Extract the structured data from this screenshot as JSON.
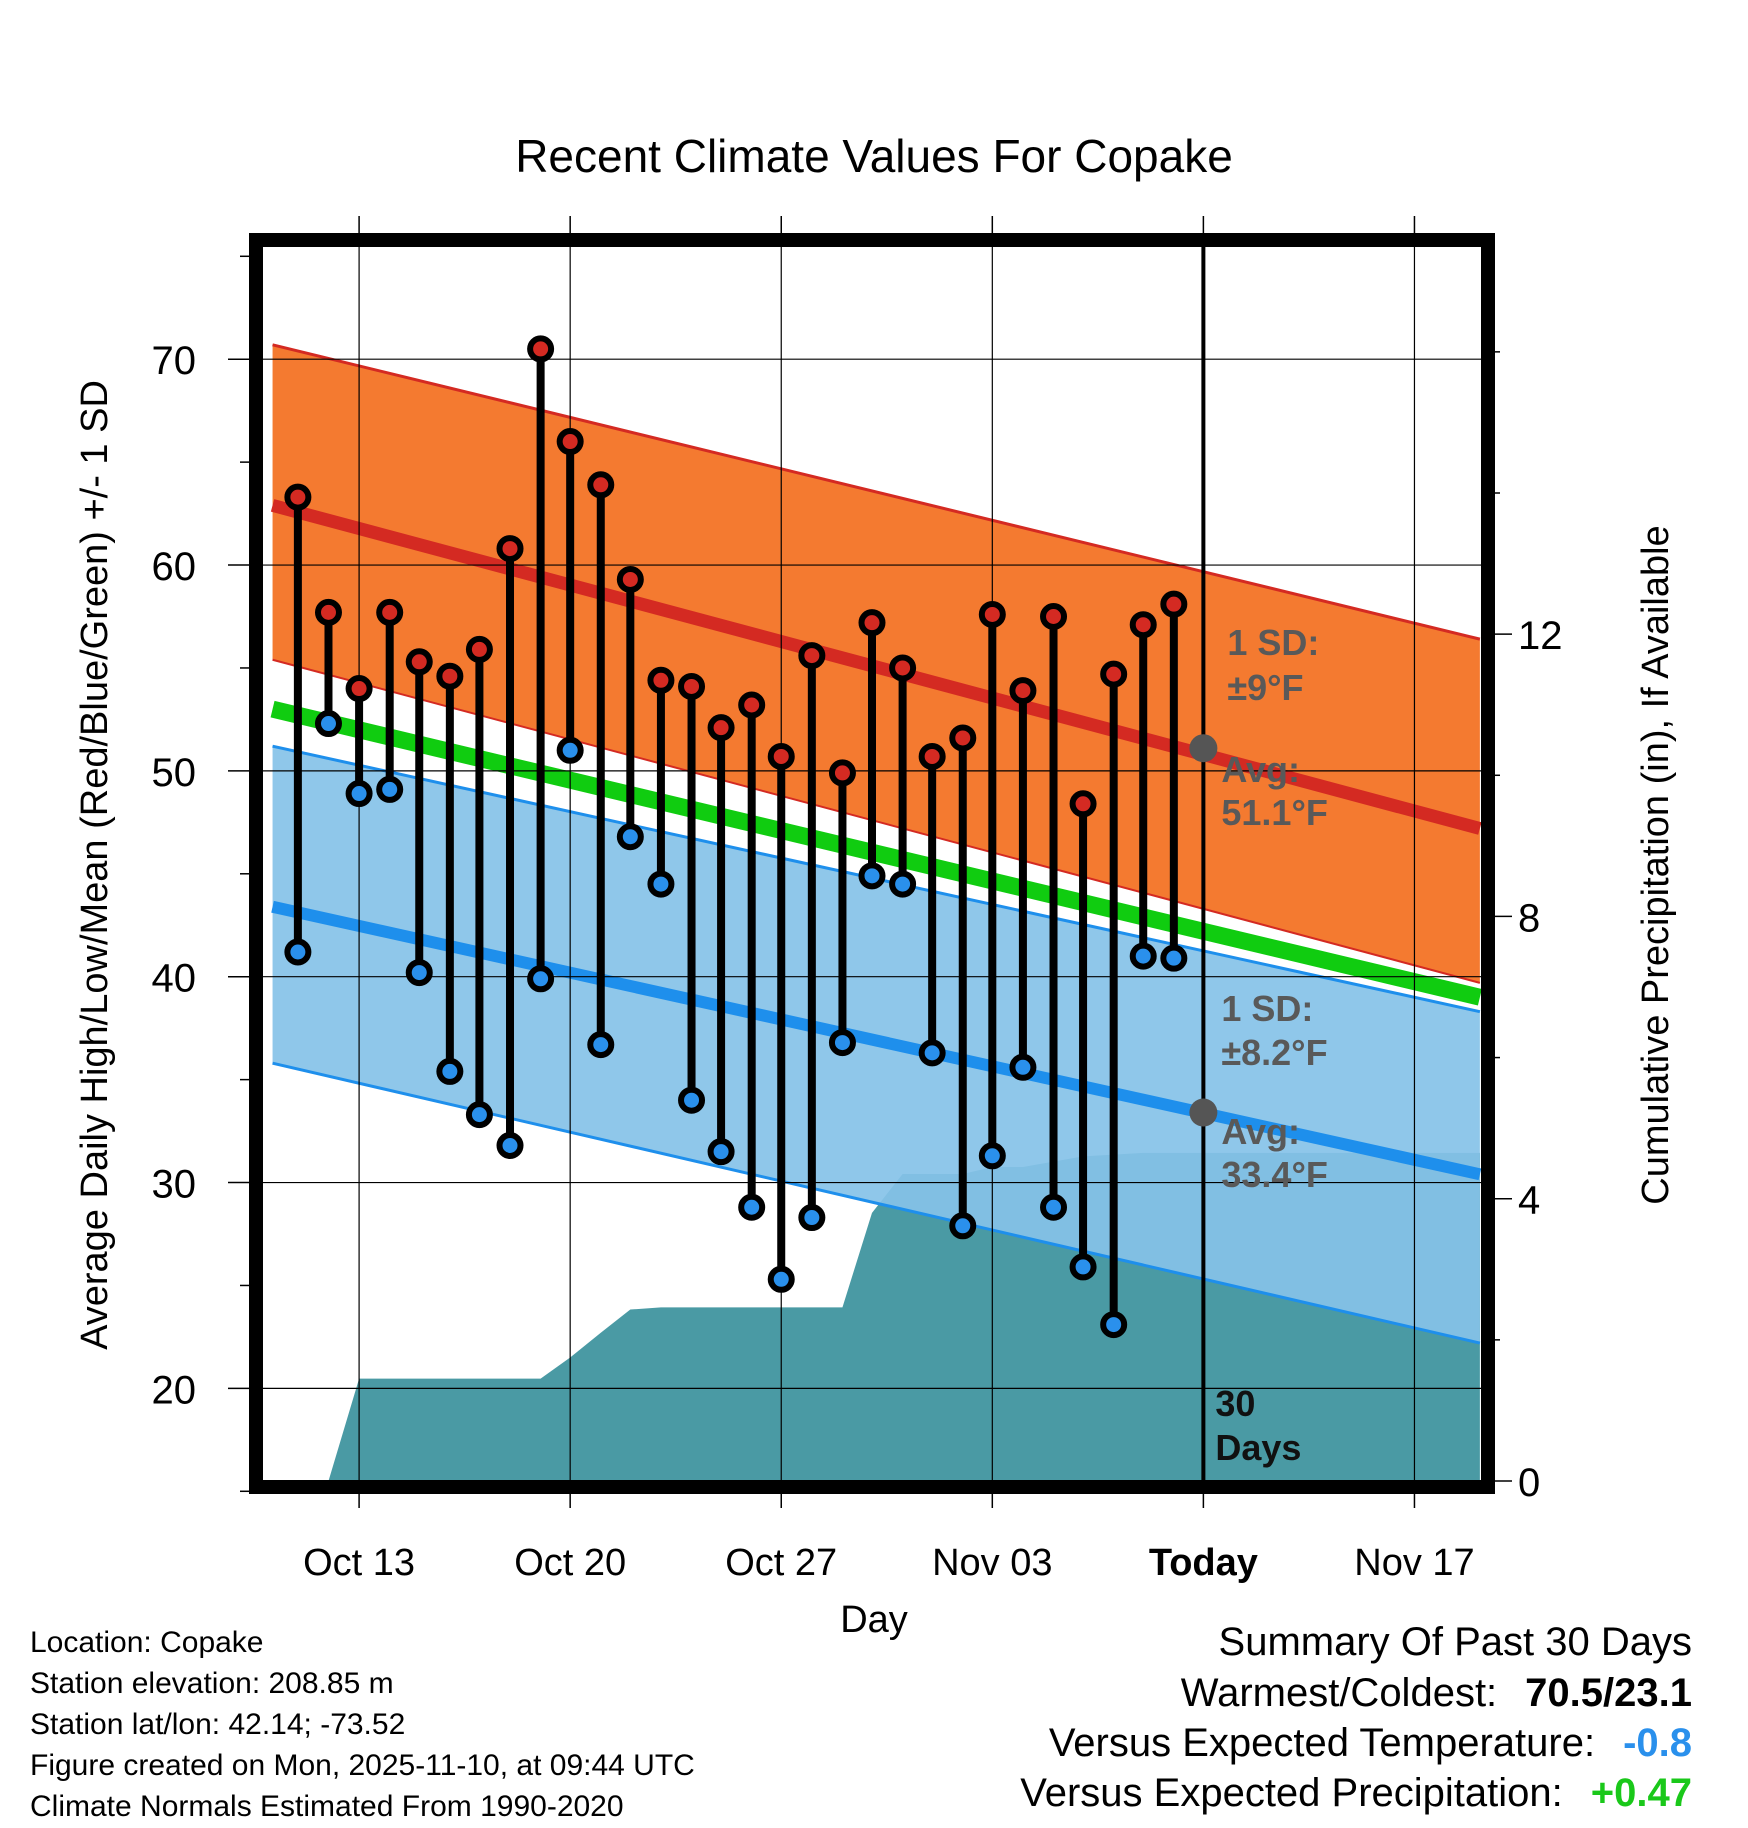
{
  "chart_data": {
    "type": "line",
    "title": "Recent Climate Values For Copake",
    "xlabel": "Day",
    "ylabel": "Average Daily High/Low/Mean (Red/Blue/Green) +/- 1 SD",
    "y2label": "Cumulative Precipitation (in), If Available",
    "ylim": [
      15.5,
      75.5
    ],
    "y2lim": [
      0,
      17.5
    ],
    "xlim": [
      -4.6,
      53.2
    ],
    "x_units": "days since Oct 13",
    "yticks": [
      20,
      30,
      40,
      50,
      60,
      70
    ],
    "y2ticks": [
      0,
      4,
      8,
      12
    ],
    "xticks": [
      {
        "x": 0,
        "label": "Oct 13"
      },
      {
        "x": 10,
        "label": "Oct 20"
      },
      {
        "x": 20,
        "label": "Oct 27"
      },
      {
        "x": 30,
        "label": "Nov 03"
      },
      {
        "x": 40,
        "label": "Today"
      },
      {
        "x": 50,
        "label": "Nov 17"
      }
    ],
    "today_x": 40,
    "daily": [
      {
        "x": -2.9,
        "high": 63.3,
        "low": 41.2
      },
      {
        "x": -1.45,
        "high": 57.7,
        "low": 52.3
      },
      {
        "x": 0.0,
        "high": 54.0,
        "low": 48.9
      },
      {
        "x": 1.45,
        "high": 57.7,
        "low": 49.1
      },
      {
        "x": 2.85,
        "high": 55.3,
        "low": 40.2
      },
      {
        "x": 4.3,
        "high": 54.6,
        "low": 35.4
      },
      {
        "x": 5.7,
        "high": 55.9,
        "low": 33.3
      },
      {
        "x": 7.15,
        "high": 60.8,
        "low": 31.8
      },
      {
        "x": 8.6,
        "high": 70.5,
        "low": 39.9
      },
      {
        "x": 10.0,
        "high": 66.0,
        "low": 51.0
      },
      {
        "x": 11.45,
        "high": 63.9,
        "low": 36.7
      },
      {
        "x": 12.85,
        "high": 59.3,
        "low": 46.8
      },
      {
        "x": 14.3,
        "high": 54.4,
        "low": 44.5
      },
      {
        "x": 15.75,
        "high": 54.1,
        "low": 34.0
      },
      {
        "x": 17.15,
        "high": 52.1,
        "low": 31.5
      },
      {
        "x": 18.6,
        "high": 53.2,
        "low": 28.8
      },
      {
        "x": 20.0,
        "high": 50.7,
        "low": 25.3
      },
      {
        "x": 21.45,
        "high": 55.6,
        "low": 28.3
      },
      {
        "x": 22.9,
        "high": 49.9,
        "low": 36.8
      },
      {
        "x": 24.3,
        "high": 57.2,
        "low": 44.9
      },
      {
        "x": 25.75,
        "high": 55.0,
        "low": 44.5
      },
      {
        "x": 27.15,
        "high": 50.7,
        "low": 36.3
      },
      {
        "x": 28.6,
        "high": 51.6,
        "low": 27.9
      },
      {
        "x": 30.0,
        "high": 57.6,
        "low": 31.3
      },
      {
        "x": 31.45,
        "high": 53.9,
        "low": 35.6
      },
      {
        "x": 32.9,
        "high": 57.5,
        "low": 28.8
      },
      {
        "x": 34.3,
        "high": 48.4,
        "low": 25.9
      },
      {
        "x": 35.75,
        "high": 54.7,
        "low": 23.1
      },
      {
        "x": 37.15,
        "high": 57.1,
        "low": 41.0
      },
      {
        "x": 38.6,
        "high": 58.1,
        "low": 40.9
      }
    ],
    "normals": {
      "high_mean": [
        [
          -4.1,
          62.9
        ],
        [
          53.1,
          47.2
        ]
      ],
      "high_upper": [
        [
          -4.1,
          70.7
        ],
        [
          53.1,
          56.4
        ]
      ],
      "high_lower": [
        [
          -4.1,
          55.4
        ],
        [
          53.1,
          39.7
        ]
      ],
      "low_mean": [
        [
          -4.1,
          43.4
        ],
        [
          53.1,
          30.4
        ]
      ],
      "low_upper": [
        [
          -4.1,
          51.2
        ],
        [
          53.1,
          38.3
        ]
      ],
      "low_lower": [
        [
          -4.1,
          35.8
        ],
        [
          53.1,
          22.2
        ]
      ],
      "mean_mean": [
        [
          -4.1,
          53.0
        ],
        [
          53.1,
          39.0
        ]
      ]
    },
    "precip_cumulative": [
      [
        -1.45,
        0.0
      ],
      [
        0.0,
        1.45
      ],
      [
        8.6,
        1.45
      ],
      [
        10.0,
        1.75
      ],
      [
        11.45,
        2.1
      ],
      [
        12.85,
        2.43
      ],
      [
        14.3,
        2.46
      ],
      [
        22.9,
        2.46
      ],
      [
        24.3,
        3.8
      ],
      [
        25.75,
        4.35
      ],
      [
        28.6,
        4.35
      ],
      [
        30.0,
        4.45
      ],
      [
        31.45,
        4.45
      ],
      [
        34.3,
        4.6
      ],
      [
        37.15,
        4.65
      ],
      [
        53.1,
        4.65
      ]
    ],
    "annotations": {
      "high_sd": "1 SD:",
      "high_sd_value": "±9°F",
      "high_avg_label": "Avg:",
      "high_avg_value": "51.1°F",
      "low_sd": "1 SD:",
      "low_sd_value": "±8.2°F",
      "low_avg_label": "Avg:",
      "low_avg_value": "33.4°F",
      "days_line1": "30",
      "days_line2": "Days"
    },
    "today_avg_high": 51.1,
    "today_avg_low": 33.4
  },
  "colors": {
    "high_band": "#f47a30",
    "high_line": "#d42a22",
    "low_band": "#85c2e8",
    "low_line": "#1e8fec",
    "mean_line": "#10cc10",
    "precip": "#4a9aa4",
    "high_dot": "#d42a22",
    "low_dot": "#2a90ec",
    "annotation": "#595959",
    "neg_value": "#2a90ec",
    "pos_value": "#1ac81a"
  },
  "meta": {
    "location": "Location: Copake",
    "elevation": "Station elevation: 208.85 m",
    "latlon": "Station lat/lon: 42.14; -73.52",
    "created": "Figure created on Mon, 2025-11-10, at 09:44 UTC",
    "normals": "Climate Normals Estimated From 1990-2020"
  },
  "summary": {
    "title": "Summary Of Past 30 Days",
    "warmest_label": "Warmest/Coldest:",
    "warmest_value": "70.5/23.1",
    "temp_label": "Versus Expected Temperature:",
    "temp_value": "-0.8",
    "precip_label": "Versus Expected Precipitation:",
    "precip_value": "+0.47"
  }
}
